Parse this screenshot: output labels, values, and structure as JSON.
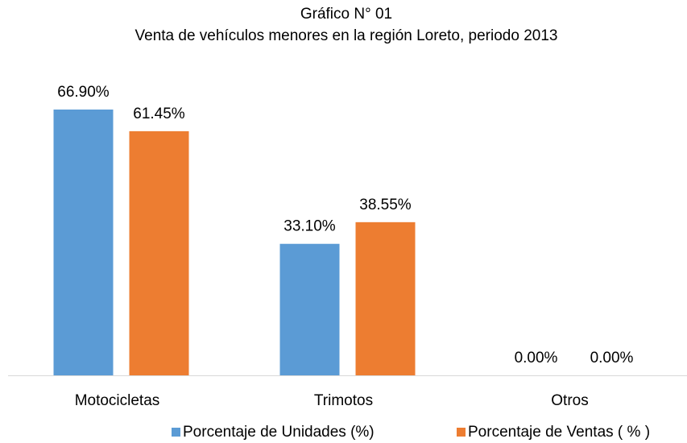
{
  "chart_data": {
    "type": "bar",
    "title": "Gráfico N° 01",
    "subtitle": "Venta de vehículos menores en la región Loreto, periodo 2013",
    "categories": [
      "Motocicletas",
      "Trimotos",
      "Otros"
    ],
    "series": [
      {
        "name": "Porcentaje de Unidades (%)",
        "color": "#5b9bd5",
        "values": [
          66.9,
          33.1,
          0
        ],
        "value_labels": [
          "66.90%",
          "33.10%",
          "0.00%"
        ]
      },
      {
        "name": "Porcentaje de Ventas ( % )",
        "color": "#ed7d31",
        "values": [
          61.45,
          38.55,
          0
        ],
        "value_labels": [
          "61.45%",
          "38.55%",
          "0.00%"
        ]
      }
    ],
    "legend": "bottom"
  }
}
